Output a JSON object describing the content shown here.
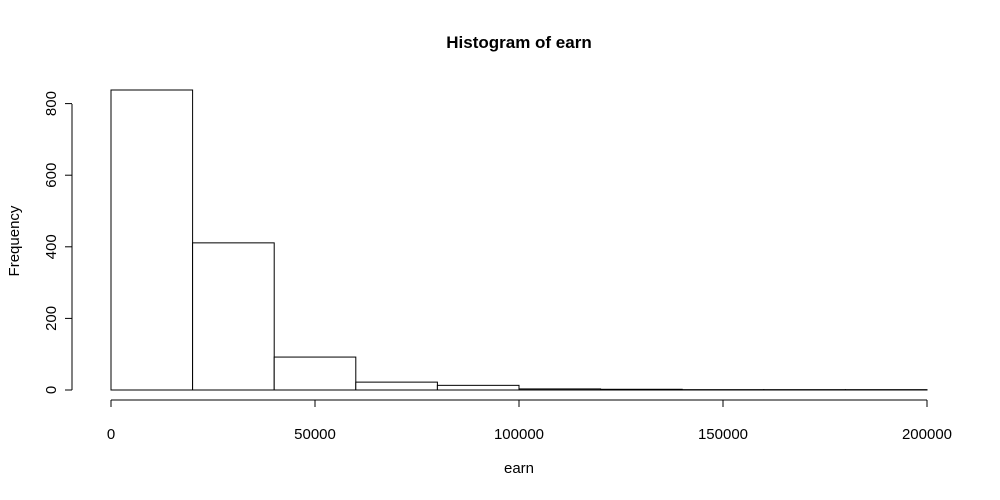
{
  "chart_data": {
    "type": "bar",
    "title": "Histogram of earn",
    "xlabel": "earn",
    "ylabel": "Frequency",
    "bin_edges": [
      0,
      20000,
      40000,
      60000,
      80000,
      100000,
      120000,
      140000,
      160000,
      180000,
      200000
    ],
    "values": [
      838,
      411,
      92,
      22,
      13,
      3,
      2,
      1,
      1,
      1
    ],
    "xlim": [
      0,
      200000
    ],
    "ylim": [
      0,
      838
    ],
    "xticks": [
      0,
      50000,
      100000,
      150000,
      200000
    ],
    "yticks": [
      0,
      200,
      400,
      600,
      800
    ],
    "xtick_labels": [
      "0",
      "50000",
      "100000",
      "150000",
      "200000"
    ],
    "ytick_labels": [
      "0",
      "200",
      "400",
      "600",
      "800"
    ],
    "grid": false,
    "colors": {
      "bar_fill": "#ffffff",
      "bar_stroke": "#000000"
    }
  }
}
